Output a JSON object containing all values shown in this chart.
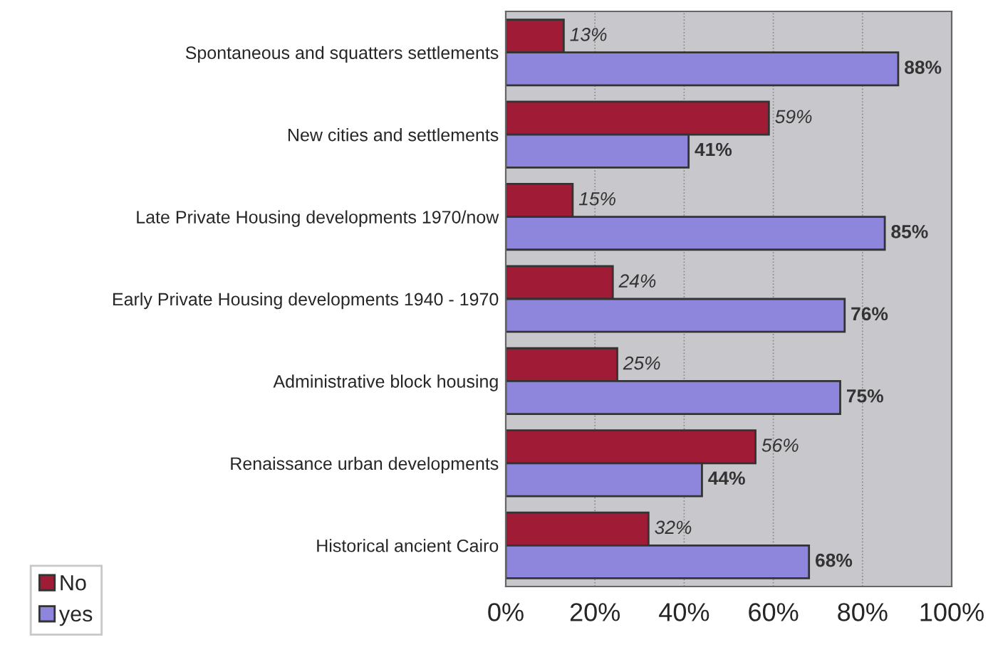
{
  "chart_data": {
    "type": "bar",
    "orientation": "horizontal",
    "categories": [
      "Spontaneous and squatters settlements",
      "New cities and settlements",
      "Late Private Housing developments 1970/now",
      "Early Private Housing developments 1940 - 1970",
      "Administrative block housing",
      "Renaissance urban developments",
      "Historical ancient Cairo"
    ],
    "series": [
      {
        "name": "No",
        "color": "#a01c36",
        "values": [
          13,
          59,
          15,
          24,
          25,
          56,
          32
        ],
        "value_labels": [
          "13%",
          "59%",
          "15%",
          "24%",
          "25%",
          "56%",
          "32%"
        ]
      },
      {
        "name": "yes",
        "color": "#8e86dc",
        "values": [
          88,
          41,
          85,
          76,
          75,
          44,
          68
        ],
        "value_labels": [
          "88%",
          "41%",
          "85%",
          "76%",
          "75%",
          "44%",
          "68%"
        ]
      }
    ],
    "xlim": [
      0,
      100
    ],
    "xticks": [
      {
        "value": 0,
        "label": "0%"
      },
      {
        "value": 20,
        "label": "20%"
      },
      {
        "value": 40,
        "label": "40%"
      },
      {
        "value": 60,
        "label": "60%"
      },
      {
        "value": 80,
        "label": "80%"
      },
      {
        "value": 100,
        "label": "100%"
      }
    ],
    "grid": "x",
    "legend": "bottom left"
  }
}
